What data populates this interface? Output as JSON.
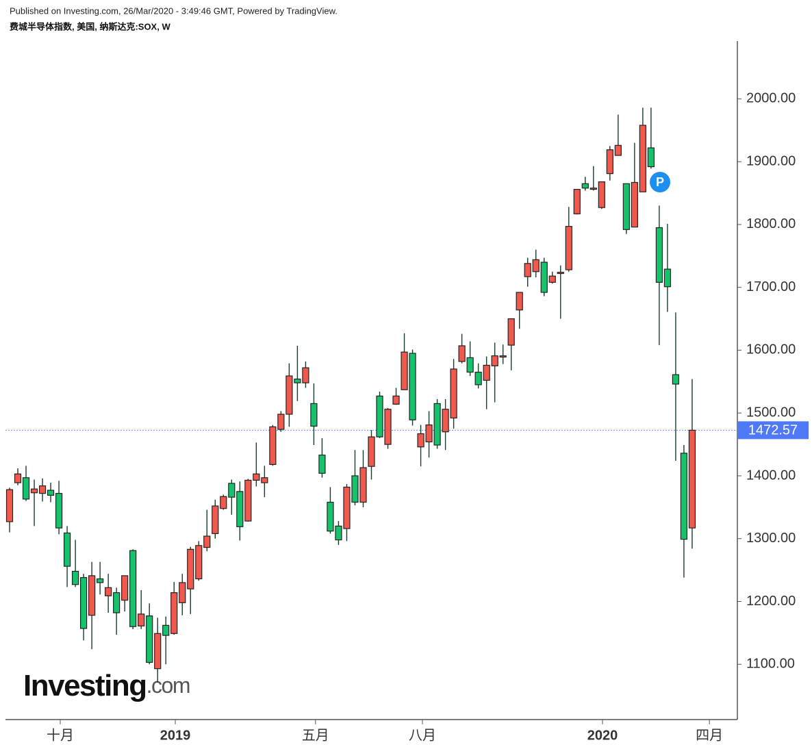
{
  "chart_data": {
    "type": "candlestick",
    "header": "Published on Investing.com, 26/Mar/2020 - 3:49:46 GMT, Powered by TradingView.",
    "title": "费城半导体指数, 美国, 纳斯达克:SOX, W",
    "logo_main": "Investing",
    "logo_suffix": ".com",
    "marker_label": "P",
    "up_color": "#f3584c",
    "down_color": "#14c46d",
    "x": [
      0,
      1,
      2,
      3,
      4,
      5,
      6,
      7,
      8,
      9,
      10,
      11,
      12,
      13,
      14,
      15,
      16,
      17,
      18,
      19,
      20,
      21,
      22,
      23,
      24,
      25,
      26,
      27,
      28,
      29,
      30,
      31,
      32,
      33,
      34,
      35,
      36,
      37,
      38,
      39,
      40,
      41,
      42,
      43,
      44,
      45,
      46,
      47,
      48,
      49,
      50,
      51,
      52,
      53,
      54,
      55,
      56,
      57,
      58,
      59,
      60,
      61,
      62,
      63,
      64,
      65,
      66,
      67,
      68,
      69,
      70,
      71,
      72,
      73,
      74,
      75,
      76,
      77,
      78,
      79,
      80,
      81,
      82,
      83
    ],
    "open": [
      1327,
      1389,
      1397,
      1373,
      1372,
      1377,
      1372,
      1309,
      1248,
      1238,
      1178,
      1236,
      1209,
      1214,
      1202,
      1281,
      1161,
      1177,
      1093,
      1162,
      1149,
      1198,
      1220,
      1236,
      1286,
      1308,
      1348,
      1388,
      1375,
      1328,
      1393,
      1389,
      1418,
      1474,
      1498,
      1554,
      1548,
      1515,
      1433,
      1358,
      1320,
      1316,
      1400,
      1358,
      1415,
      1527,
      1450,
      1514,
      1537,
      1595,
      1446,
      1454,
      1515,
      1470,
      1492,
      1582,
      1588,
      1565,
      1552,
      1575,
      1589,
      1608,
      1664,
      1717,
      1725,
      1740,
      1708,
      1722,
      1728,
      1817,
      1865,
      1856,
      1827,
      1881,
      1910,
      1865,
      1796,
      1852,
      1922,
      1795,
      1729,
      1561,
      1436,
      1317
    ],
    "high": [
      1381,
      1412,
      1416,
      1394,
      1396,
      1389,
      1392,
      1320,
      1298,
      1244,
      1263,
      1263,
      1244,
      1222,
      1241,
      1283,
      1218,
      1197,
      1174,
      1176,
      1231,
      1244,
      1287,
      1296,
      1346,
      1362,
      1370,
      1394,
      1391,
      1395,
      1453,
      1416,
      1481,
      1503,
      1579,
      1607,
      1582,
      1547,
      1460,
      1382,
      1328,
      1387,
      1441,
      1441,
      1473,
      1534,
      1508,
      1540,
      1627,
      1601,
      1481,
      1503,
      1522,
      1522,
      1586,
      1626,
      1614,
      1579,
      1590,
      1612,
      1609,
      1650,
      1692,
      1747,
      1760,
      1747,
      1725,
      1735,
      1828,
      1856,
      1876,
      1893,
      1868,
      1925,
      1975,
      1865,
      1930,
      1986,
      1986,
      1830,
      1801,
      1660,
      1449,
      1554
    ],
    "low": [
      1310,
      1385,
      1360,
      1320,
      1359,
      1358,
      1307,
      1223,
      1223,
      1138,
      1124,
      1211,
      1182,
      1147,
      1184,
      1156,
      1156,
      1100,
      1071,
      1100,
      1147,
      1178,
      1180,
      1233,
      1280,
      1300,
      1346,
      1338,
      1297,
      1327,
      1383,
      1366,
      1416,
      1470,
      1478,
      1519,
      1540,
      1449,
      1397,
      1308,
      1290,
      1296,
      1353,
      1350,
      1394,
      1460,
      1443,
      1513,
      1537,
      1480,
      1415,
      1429,
      1443,
      1441,
      1475,
      1579,
      1559,
      1539,
      1506,
      1517,
      1578,
      1568,
      1634,
      1701,
      1716,
      1686,
      1706,
      1650,
      1725,
      1816,
      1854,
      1854,
      1825,
      1870,
      1910,
      1785,
      1796,
      1852,
      1889,
      1608,
      1661,
      1424,
      1238,
      1284
    ],
    "close": [
      1378,
      1403,
      1363,
      1379,
      1384,
      1369,
      1317,
      1256,
      1227,
      1157,
      1241,
      1230,
      1222,
      1182,
      1241,
      1160,
      1180,
      1103,
      1149,
      1146,
      1214,
      1230,
      1283,
      1289,
      1304,
      1352,
      1367,
      1366,
      1319,
      1393,
      1403,
      1397,
      1478,
      1498,
      1559,
      1548,
      1572,
      1479,
      1404,
      1312,
      1298,
      1382,
      1358,
      1413,
      1462,
      1462,
      1506,
      1527,
      1597,
      1489,
      1467,
      1481,
      1449,
      1506,
      1570,
      1607,
      1565,
      1545,
      1576,
      1591,
      1591,
      1650,
      1692,
      1738,
      1744,
      1692,
      1718,
      1724,
      1797,
      1856,
      1858,
      1858,
      1868,
      1919,
      1926,
      1792,
      1867,
      1958,
      1892,
      1708,
      1701,
      1546,
      1299,
      1472.57
    ],
    "last_price": 1472.57,
    "xlim": [
      -0.5,
      88.5
    ],
    "xticks": [
      {
        "value": 6.16,
        "label": "十月"
      },
      {
        "value": 20.15,
        "label": "2019"
      },
      {
        "value": 37.2,
        "label": "五月"
      },
      {
        "value": 50.2,
        "label": "八月"
      },
      {
        "value": 72.1,
        "label": "2020"
      },
      {
        "value": 85.1,
        "label": "四月"
      }
    ],
    "ylim": [
      1012,
      2092
    ],
    "yticks": [
      {
        "value": 1100,
        "label": "1100.00"
      },
      {
        "value": 1200,
        "label": "1200.00"
      },
      {
        "value": 1300,
        "label": "1300.00"
      },
      {
        "value": 1400,
        "label": "1400.00"
      },
      {
        "value": 1500,
        "label": "1500.00"
      },
      {
        "value": 1600,
        "label": "1600.00"
      },
      {
        "value": 1700,
        "label": "1700.00"
      },
      {
        "value": 1800,
        "label": "1800.00"
      },
      {
        "value": 1900,
        "label": "1900.00"
      },
      {
        "value": 2000,
        "label": "2000.00"
      }
    ]
  }
}
